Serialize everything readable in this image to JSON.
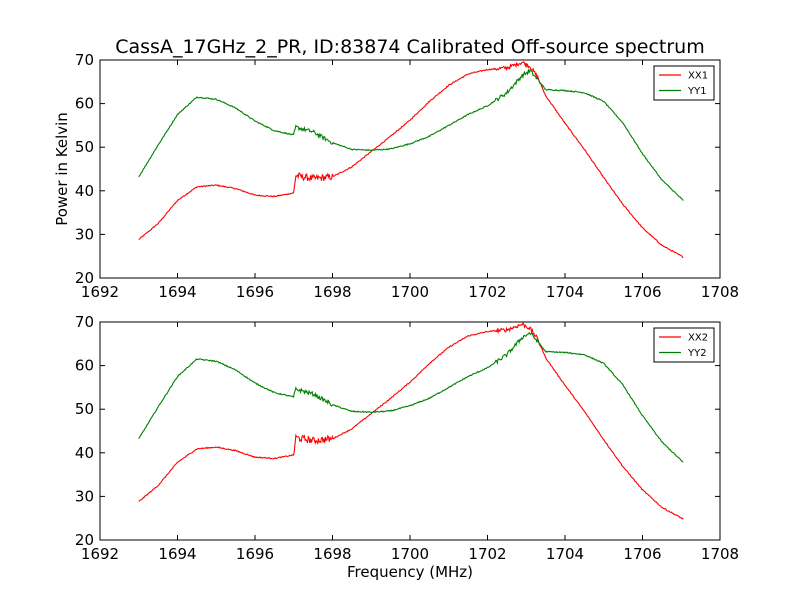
{
  "chart_data": [
    {
      "type": "line",
      "title": "CassA_17GHz_2_PR, ID:83874 Calibrated Off-source spectrum",
      "xlabel": "",
      "ylabel": "Power in Kelvin",
      "xlim": [
        1692,
        1708
      ],
      "ylim": [
        20,
        70
      ],
      "x_ticks": [
        "1692",
        "1694",
        "1696",
        "1698",
        "1700",
        "1702",
        "1704",
        "1706",
        "1708"
      ],
      "y_ticks": [
        "20",
        "30",
        "40",
        "50",
        "60",
        "70"
      ],
      "grid": false,
      "legend_position": "top-right",
      "series": [
        {
          "name": "XX1",
          "color": "#ff0000",
          "x": [
            1693.0,
            1693.5,
            1694.0,
            1694.5,
            1695.0,
            1695.5,
            1696.0,
            1696.5,
            1697.0,
            1697.05,
            1697.5,
            1698.0,
            1698.5,
            1699.0,
            1699.5,
            1700.0,
            1700.5,
            1701.0,
            1701.5,
            1702.0,
            1702.5,
            1702.9,
            1703.1,
            1703.3,
            1703.5,
            1704.0,
            1704.5,
            1705.0,
            1705.5,
            1706.0,
            1706.5,
            1707.05
          ],
          "y": [
            28.8,
            32.5,
            37.8,
            40.9,
            41.3,
            40.5,
            39.0,
            38.7,
            39.5,
            43.5,
            42.8,
            43.2,
            45.5,
            49.0,
            52.5,
            56.2,
            60.5,
            64.2,
            66.8,
            67.8,
            68.2,
            69.5,
            68.5,
            66.0,
            61.8,
            55.5,
            49.5,
            43.0,
            36.8,
            31.5,
            27.5,
            24.8
          ]
        },
        {
          "name": "YY1",
          "color": "#008000",
          "x": [
            1693.0,
            1693.5,
            1694.0,
            1694.5,
            1695.0,
            1695.5,
            1696.0,
            1696.5,
            1697.0,
            1697.05,
            1697.5,
            1698.0,
            1698.5,
            1699.0,
            1699.5,
            1700.0,
            1700.5,
            1701.0,
            1701.5,
            1702.0,
            1702.5,
            1702.9,
            1703.1,
            1703.3,
            1703.5,
            1704.0,
            1704.5,
            1705.0,
            1705.5,
            1706.0,
            1706.5,
            1707.05
          ],
          "y": [
            43.2,
            50.5,
            57.5,
            61.5,
            61.0,
            59.0,
            56.0,
            53.8,
            52.8,
            54.6,
            53.5,
            51.0,
            49.5,
            49.3,
            49.6,
            50.8,
            52.5,
            55.0,
            57.5,
            59.5,
            62.5,
            66.5,
            67.5,
            65.5,
            63.2,
            63.0,
            62.5,
            60.5,
            55.5,
            48.5,
            42.5,
            37.8
          ]
        }
      ]
    },
    {
      "type": "line",
      "title": "",
      "xlabel": "Frequency (MHz)",
      "ylabel": "",
      "xlim": [
        1692,
        1708
      ],
      "ylim": [
        20,
        70
      ],
      "x_ticks": [
        "1692",
        "1694",
        "1696",
        "1698",
        "1700",
        "1702",
        "1704",
        "1706",
        "1708"
      ],
      "y_ticks": [
        "20",
        "30",
        "40",
        "50",
        "60",
        "70"
      ],
      "grid": false,
      "legend_position": "top-right",
      "series": [
        {
          "name": "XX2",
          "color": "#ff0000",
          "x": [
            1693.0,
            1693.5,
            1694.0,
            1694.5,
            1695.0,
            1695.5,
            1696.0,
            1696.5,
            1697.0,
            1697.05,
            1697.5,
            1698.0,
            1698.5,
            1699.0,
            1699.5,
            1700.0,
            1700.5,
            1701.0,
            1701.5,
            1702.0,
            1702.5,
            1702.9,
            1703.1,
            1703.3,
            1703.5,
            1704.0,
            1704.5,
            1705.0,
            1705.5,
            1706.0,
            1706.5,
            1707.05
          ],
          "y": [
            28.8,
            32.5,
            37.8,
            40.9,
            41.3,
            40.5,
            39.0,
            38.7,
            39.5,
            43.5,
            42.8,
            43.2,
            45.5,
            49.0,
            52.5,
            56.2,
            60.5,
            64.2,
            66.8,
            67.8,
            68.2,
            69.5,
            68.5,
            66.0,
            61.8,
            55.5,
            49.5,
            43.0,
            36.8,
            31.5,
            27.5,
            24.8
          ]
        },
        {
          "name": "YY2",
          "color": "#008000",
          "x": [
            1693.0,
            1693.5,
            1694.0,
            1694.5,
            1695.0,
            1695.5,
            1696.0,
            1696.5,
            1697.0,
            1697.05,
            1697.5,
            1698.0,
            1698.5,
            1699.0,
            1699.5,
            1700.0,
            1700.5,
            1701.0,
            1701.5,
            1702.0,
            1702.5,
            1702.9,
            1703.1,
            1703.3,
            1703.5,
            1704.0,
            1704.5,
            1705.0,
            1705.5,
            1706.0,
            1706.5,
            1707.05
          ],
          "y": [
            43.2,
            50.5,
            57.5,
            61.5,
            61.0,
            59.0,
            56.0,
            53.8,
            52.8,
            54.6,
            53.5,
            51.0,
            49.5,
            49.3,
            49.6,
            50.8,
            52.5,
            55.0,
            57.5,
            59.5,
            62.5,
            66.5,
            67.5,
            65.5,
            63.2,
            63.0,
            62.5,
            60.5,
            55.5,
            48.5,
            42.5,
            37.8
          ]
        }
      ]
    }
  ]
}
